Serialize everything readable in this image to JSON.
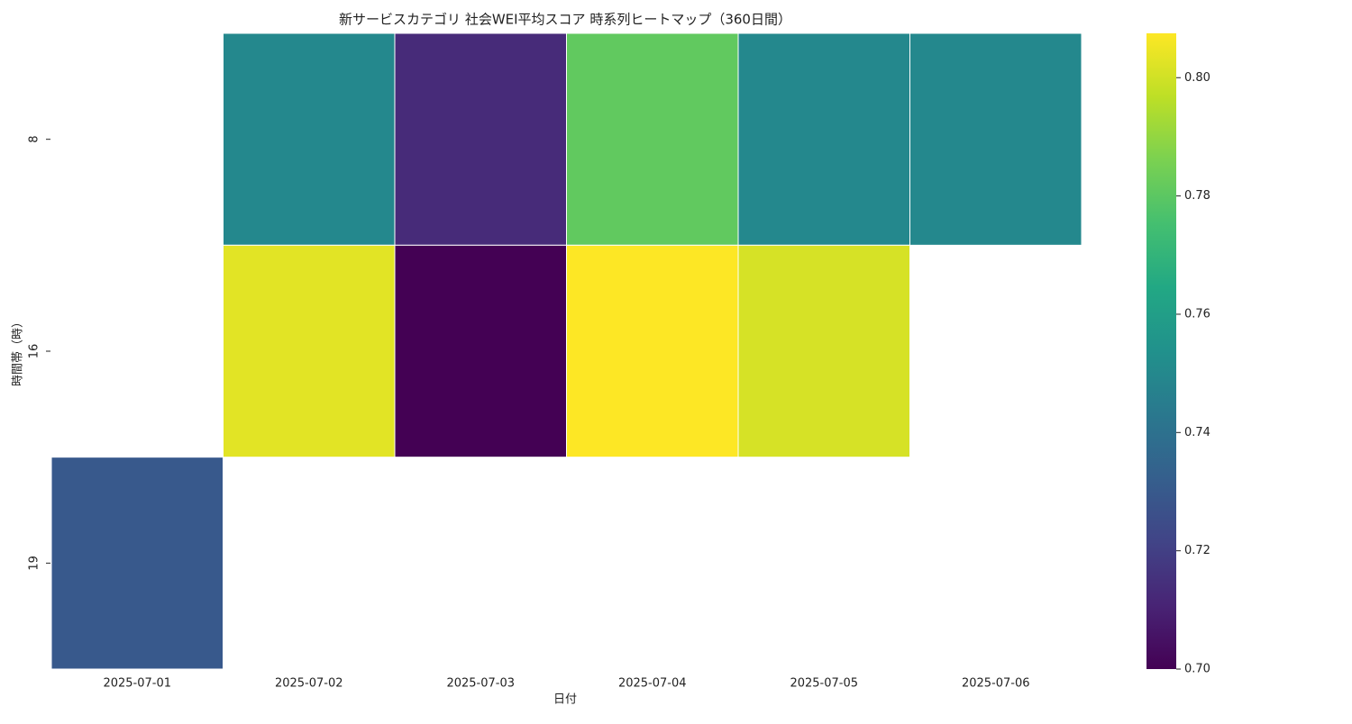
{
  "chart_data": {
    "type": "heatmap",
    "title": "新サービスカテゴリ 社会WEI平均スコア 時系列ヒートマップ（360日間）",
    "x_label": "日付",
    "y_label": "時間帯（時）",
    "categories": [
      "2025-07-01",
      "2025-07-02",
      "2025-07-03",
      "2025-07-04",
      "2025-07-05",
      "2025-07-06"
    ],
    "y_categories": [
      "8",
      "16",
      "19"
    ],
    "values": [
      [
        null,
        0.75,
        0.713,
        0.781,
        0.75,
        0.75
      ],
      [
        null,
        0.803,
        0.7,
        0.8075,
        0.801,
        null
      ],
      [
        0.73,
        null,
        null,
        null,
        null,
        null
      ]
    ],
    "colormap": "viridis",
    "clim": [
      0.7,
      0.8075
    ],
    "cticks": [
      {
        "value": 0.7,
        "label": "0.70"
      },
      0.72,
      0.74,
      0.76,
      0.78,
      {
        "value": 0.8,
        "label": "0.80"
      }
    ]
  }
}
